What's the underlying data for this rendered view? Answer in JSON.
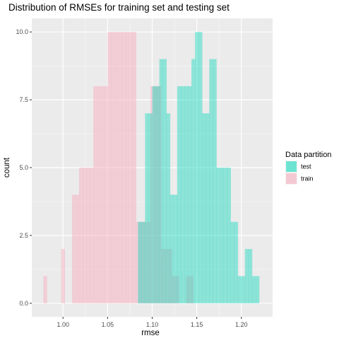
{
  "chart_data": {
    "type": "histogram",
    "title": "Distribution of RMSEs for training set and testing set",
    "xlabel": "rmse",
    "ylabel": "count",
    "xlim": [
      0.965,
      1.235
    ],
    "ylim": [
      -0.5,
      10.5
    ],
    "x_ticks": [
      {
        "value": 1.0,
        "label": "1.00"
      },
      {
        "value": 1.05,
        "label": "1.05"
      },
      {
        "value": 1.1,
        "label": "1.10"
      },
      {
        "value": 1.15,
        "label": "1.15"
      },
      {
        "value": 1.2,
        "label": "1.20"
      }
    ],
    "y_ticks": [
      {
        "value": 0,
        "label": "0.0"
      },
      {
        "value": 2.5,
        "label": "2.5"
      },
      {
        "value": 5,
        "label": "5.0"
      },
      {
        "value": 7.5,
        "label": "7.5"
      },
      {
        "value": 10,
        "label": "10.0"
      }
    ],
    "grid": true,
    "panel_background": "#ebebeb",
    "legend": {
      "title": "Data partition",
      "position": "right",
      "entries": [
        {
          "label": "test",
          "color": "#00d8b8"
        },
        {
          "label": "train",
          "color": "#f8a8bc"
        }
      ]
    },
    "bin_width": 0.004,
    "series": [
      {
        "name": "train",
        "color": "#f8a8bc",
        "opacity": 0.45,
        "bin_starts": [
          0.978,
          0.982,
          0.986,
          0.99,
          0.994,
          0.998,
          1.002,
          1.006,
          1.01,
          1.014,
          1.018,
          1.022,
          1.026,
          1.03,
          1.034,
          1.038,
          1.042,
          1.046,
          1.05,
          1.054,
          1.058,
          1.062,
          1.066,
          1.07,
          1.074,
          1.078,
          1.082,
          1.086,
          1.09,
          1.094,
          1.098,
          1.102,
          1.106,
          1.11,
          1.114,
          1.118,
          1.122,
          1.126,
          1.13,
          1.134,
          1.138,
          1.142
        ],
        "counts": [
          1,
          0,
          0,
          0,
          0,
          2,
          0,
          0,
          4,
          4,
          5,
          5,
          5,
          5,
          8,
          8,
          8,
          8,
          10,
          10,
          10,
          10,
          10,
          10,
          10,
          10,
          3,
          3,
          3,
          3,
          8,
          8,
          8,
          2,
          2,
          2,
          1,
          1,
          0,
          0,
          1,
          1
        ]
      },
      {
        "name": "test",
        "color": "#00d8b8",
        "opacity": 0.4,
        "bin_starts": [
          1.084,
          1.088,
          1.092,
          1.096,
          1.1,
          1.104,
          1.108,
          1.112,
          1.116,
          1.12,
          1.124,
          1.128,
          1.132,
          1.136,
          1.14,
          1.144,
          1.148,
          1.152,
          1.156,
          1.16,
          1.164,
          1.168,
          1.172,
          1.176,
          1.18,
          1.184,
          1.188,
          1.192,
          1.196,
          1.2,
          1.204,
          1.208,
          1.212,
          1.216
        ],
        "counts": [
          3,
          3,
          7,
          7,
          8,
          8,
          9,
          9,
          7,
          4,
          4,
          8,
          8,
          8,
          8,
          9,
          10,
          10,
          7,
          7,
          9,
          9,
          5,
          5,
          5,
          5,
          3,
          3,
          1,
          1,
          2,
          2,
          1,
          1
        ]
      }
    ]
  }
}
